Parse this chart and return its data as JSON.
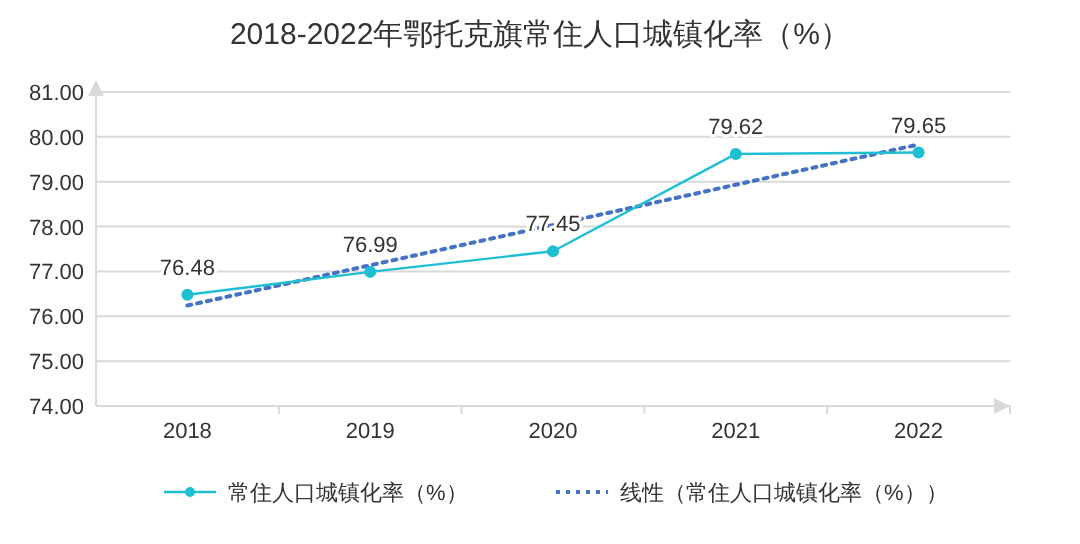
{
  "chart_data": {
    "type": "line",
    "title": "2018-2022年鄂托克旗常住人口城镇化率（%）",
    "categories": [
      "2018",
      "2019",
      "2020",
      "2021",
      "2022"
    ],
    "series": [
      {
        "name": "常住人口城镇化率（%）",
        "color": "#1fbfd3",
        "values": [
          76.48,
          76.99,
          77.45,
          79.62,
          79.65
        ],
        "value_labels": [
          "76.48",
          "76.99",
          "77.45",
          "79.62",
          "79.65"
        ],
        "marker": "circle",
        "line_style": "solid"
      },
      {
        "name": "线性（常住人口城镇化率（%））",
        "color": "#4472c4",
        "values": [
          76.24,
          null,
          null,
          null,
          79.83
        ],
        "marker": "none",
        "line_style": "dotted"
      }
    ],
    "ylim": [
      74,
      81
    ],
    "yticks": [
      {
        "value": 74,
        "label": "74.00"
      },
      {
        "value": 75,
        "label": "75.00"
      },
      {
        "value": 76,
        "label": "76.00"
      },
      {
        "value": 77,
        "label": "77.00"
      },
      {
        "value": 78,
        "label": "78.00"
      },
      {
        "value": 79,
        "label": "79.00"
      },
      {
        "value": 80,
        "label": "80.00"
      },
      {
        "value": 81,
        "label": "81.00"
      }
    ],
    "grid": "y",
    "legend": "bottom"
  }
}
